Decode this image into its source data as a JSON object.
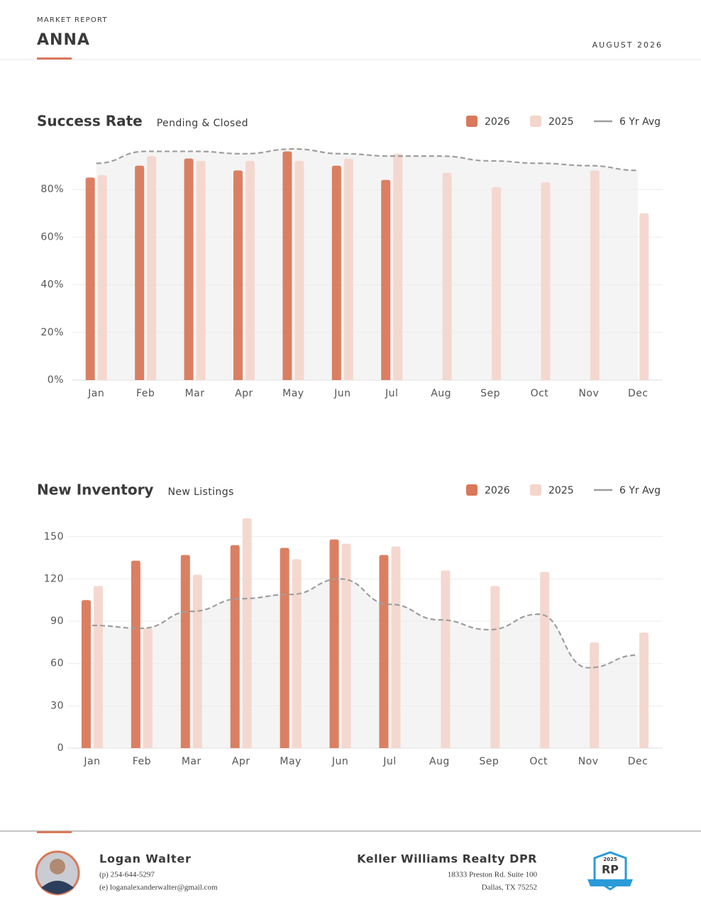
{
  "header": {
    "label": "MARKET REPORT",
    "title": "ANNA",
    "date": "AUGUST 2026"
  },
  "chart_data": [
    {
      "type": "bar",
      "title": "Success Rate",
      "subtitle": "Pending & Closed",
      "categories": [
        "Jan",
        "Feb",
        "Mar",
        "Apr",
        "May",
        "Jun",
        "Jul",
        "Aug",
        "Sep",
        "Oct",
        "Nov",
        "Dec"
      ],
      "series": [
        {
          "name": "2026",
          "color": "#d9785a",
          "values": [
            85,
            90,
            93,
            88,
            96,
            90,
            84,
            null,
            null,
            null,
            null,
            null
          ]
        },
        {
          "name": "2025",
          "color": "#f3d6cc",
          "values": [
            86,
            94,
            92,
            92,
            92,
            93,
            95,
            87,
            81,
            83,
            88,
            70
          ]
        },
        {
          "name": "6 Yr Avg",
          "color": "#9e9e9e",
          "type": "line",
          "values": [
            91,
            96,
            96,
            95,
            97,
            95,
            94,
            94,
            92,
            91,
            90,
            88
          ]
        }
      ],
      "ylim": [
        0,
        100
      ],
      "yticks": [
        {
          "value": 0,
          "label": "0%"
        },
        {
          "value": 20,
          "label": "20%"
        },
        {
          "value": 40,
          "label": "40%"
        },
        {
          "value": 60,
          "label": "60%"
        },
        {
          "value": 80,
          "label": "80%"
        }
      ],
      "grid": true
    },
    {
      "type": "bar",
      "title": "New Inventory",
      "subtitle": "New Listings",
      "categories": [
        "Jan",
        "Feb",
        "Mar",
        "Apr",
        "May",
        "Jun",
        "Jul",
        "Aug",
        "Sep",
        "Oct",
        "Nov",
        "Dec"
      ],
      "series": [
        {
          "name": "2026",
          "color": "#d9785a",
          "values": [
            105,
            133,
            137,
            144,
            142,
            148,
            137,
            null,
            null,
            null,
            null,
            null
          ]
        },
        {
          "name": "2025",
          "color": "#f3d6cc",
          "values": [
            115,
            85,
            123,
            163,
            134,
            145,
            143,
            126,
            115,
            125,
            75,
            82
          ]
        },
        {
          "name": "6 Yr Avg",
          "color": "#9e9e9e",
          "type": "line",
          "values": [
            87,
            85,
            97,
            106,
            109,
            120,
            102,
            91,
            84,
            95,
            57,
            66
          ]
        }
      ],
      "ylim": [
        0,
        170
      ],
      "yticks": [
        0,
        30,
        60,
        90,
        120,
        150
      ],
      "grid": true
    }
  ],
  "footer": {
    "agent": {
      "name": "Logan Walter",
      "phone": "(p) 254-644-5297",
      "email": "(e) loganalexanderwalter@gmail.com"
    },
    "brokerage": {
      "name": "Keller Williams Realty DPR",
      "address": [
        "18333 Preston Rd. Suite 100",
        "Dallas, TX 75252"
      ]
    },
    "badge": {
      "year": "2025",
      "logo": "RP"
    }
  }
}
